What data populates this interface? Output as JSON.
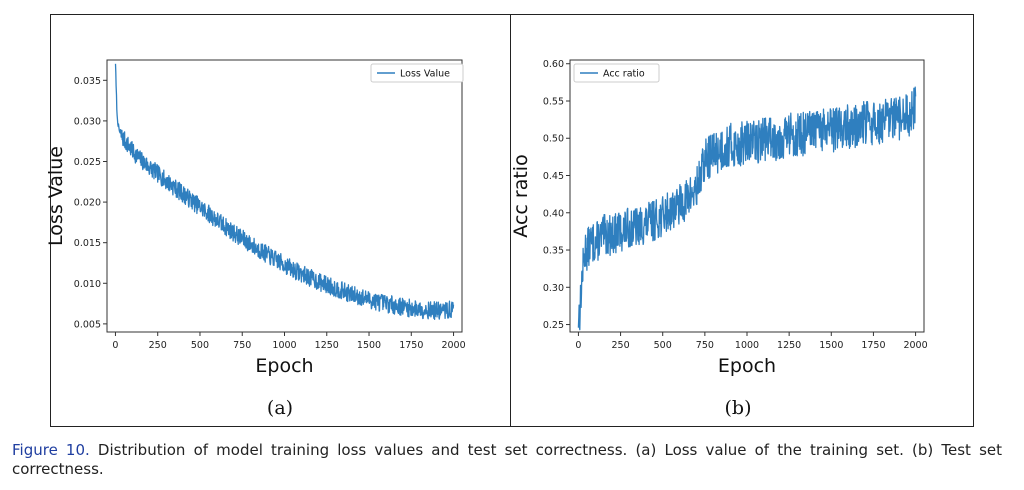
{
  "figure": {
    "caption_label": "Figure 10.",
    "caption_text": " Distribution of model training loss values and test set correctness. (a) Loss value of the training set. (b) Test set correctness."
  },
  "chart_data": [
    {
      "type": "line",
      "panel_label": "(a)",
      "xlabel": "Epoch",
      "ylabel": "Loss Value",
      "xlim": [
        -50,
        2050
      ],
      "ylim": [
        0.004,
        0.0375
      ],
      "xticks": [
        0,
        250,
        500,
        750,
        1000,
        1250,
        1500,
        1750,
        2000
      ],
      "yticks": [
        0.005,
        0.01,
        0.015,
        0.02,
        0.025,
        0.03,
        0.035
      ],
      "ytick_labels": [
        "0.005",
        "0.010",
        "0.015",
        "0.020",
        "0.025",
        "0.030",
        "0.035"
      ],
      "legend": "top-right",
      "color": "#2f7fbf",
      "series": [
        {
          "name": "Loss Value",
          "x": [
            0,
            5,
            10,
            20,
            30,
            50,
            75,
            100,
            150,
            200,
            250,
            300,
            350,
            400,
            450,
            500,
            550,
            600,
            650,
            700,
            750,
            800,
            850,
            900,
            950,
            1000,
            1050,
            1100,
            1150,
            1200,
            1250,
            1300,
            1350,
            1400,
            1450,
            1500,
            1550,
            1600,
            1650,
            1700,
            1750,
            1800,
            1850,
            1900,
            1950,
            2000
          ],
          "values": [
            0.0372,
            0.0335,
            0.0305,
            0.029,
            0.0283,
            0.0277,
            0.027,
            0.0263,
            0.0252,
            0.0243,
            0.0235,
            0.0226,
            0.0218,
            0.021,
            0.0202,
            0.0194,
            0.0186,
            0.0178,
            0.017,
            0.0162,
            0.0155,
            0.0148,
            0.0141,
            0.0135,
            0.0129,
            0.0123,
            0.0117,
            0.0112,
            0.0107,
            0.0102,
            0.0098,
            0.0094,
            0.009,
            0.0086,
            0.0083,
            0.008,
            0.0077,
            0.0075,
            0.0073,
            0.0071,
            0.0069,
            0.0068,
            0.0067,
            0.0066,
            0.0066,
            0.0068
          ]
        }
      ]
    },
    {
      "type": "line",
      "panel_label": "(b)",
      "xlabel": "Epoch",
      "ylabel": "Acc ratio",
      "xlim": [
        -50,
        2050
      ],
      "ylim": [
        0.24,
        0.605
      ],
      "xticks": [
        0,
        250,
        500,
        750,
        1000,
        1250,
        1500,
        1750,
        2000
      ],
      "yticks": [
        0.25,
        0.3,
        0.35,
        0.4,
        0.45,
        0.5,
        0.55,
        0.6
      ],
      "ytick_labels": [
        "0.25",
        "0.30",
        "0.35",
        "0.40",
        "0.45",
        "0.50",
        "0.55",
        "0.60"
      ],
      "legend": "top-left",
      "color": "#2f7fbf",
      "series": [
        {
          "name": "Acc ratio",
          "x": [
            0,
            10,
            20,
            30,
            40,
            50,
            75,
            100,
            150,
            200,
            250,
            300,
            350,
            400,
            450,
            500,
            550,
            600,
            650,
            700,
            720,
            750,
            800,
            850,
            900,
            950,
            1000,
            1050,
            1100,
            1150,
            1200,
            1250,
            1300,
            1350,
            1400,
            1450,
            1500,
            1550,
            1600,
            1650,
            1700,
            1750,
            1800,
            1850,
            1900,
            1950,
            2000
          ],
          "values": [
            0.26,
            0.27,
            0.31,
            0.33,
            0.35,
            0.35,
            0.36,
            0.36,
            0.37,
            0.37,
            0.375,
            0.38,
            0.38,
            0.385,
            0.39,
            0.395,
            0.405,
            0.41,
            0.42,
            0.43,
            0.445,
            0.47,
            0.48,
            0.485,
            0.49,
            0.49,
            0.495,
            0.495,
            0.5,
            0.5,
            0.5,
            0.505,
            0.505,
            0.505,
            0.51,
            0.51,
            0.51,
            0.515,
            0.515,
            0.515,
            0.52,
            0.52,
            0.52,
            0.525,
            0.525,
            0.53,
            0.54
          ]
        }
      ]
    }
  ]
}
